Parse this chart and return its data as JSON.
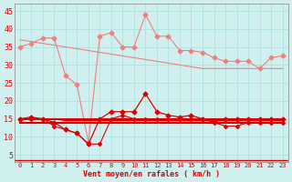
{
  "x": [
    0,
    1,
    2,
    3,
    4,
    5,
    6,
    7,
    8,
    9,
    10,
    11,
    12,
    13,
    14,
    15,
    16,
    17,
    18,
    19,
    20,
    21,
    22,
    23
  ],
  "rafales": [
    35,
    36,
    37.5,
    37.5,
    27,
    24.5,
    8.5,
    38,
    39,
    35,
    35,
    44,
    38,
    38,
    34,
    34,
    33.5,
    32,
    31,
    31,
    31,
    29,
    32,
    32.5
  ],
  "rafales_trend": [
    37,
    36.5,
    36,
    35.5,
    35,
    34.5,
    34,
    33.5,
    33,
    32.5,
    32,
    31.5,
    31,
    30.5,
    30,
    29.5,
    29,
    29,
    29,
    29,
    29,
    29,
    29,
    29
  ],
  "vent_moy": [
    15,
    15.5,
    15,
    14,
    12,
    11,
    8,
    15,
    17,
    17,
    17,
    22,
    17,
    16,
    15.5,
    16,
    15,
    14.5,
    15,
    15,
    15,
    15,
    15,
    15
  ],
  "vent_moy_trend": [
    15,
    15,
    15,
    15,
    14.5,
    14.5,
    14.5,
    14.5,
    14.5,
    14.5,
    14.5,
    14.5,
    14.5,
    14.5,
    14.5,
    14.5,
    14.5,
    14.5,
    14.5,
    14.5,
    14.5,
    14.5,
    14.5,
    14.5
  ],
  "vent_min": [
    15,
    15,
    15,
    13,
    12,
    11,
    8,
    8,
    15,
    16,
    15,
    15,
    15,
    15,
    15,
    15,
    15,
    14,
    13,
    13,
    14,
    14,
    14,
    14
  ],
  "vent_flat1": [
    15,
    15,
    15,
    15,
    15,
    15,
    15,
    15,
    15,
    15,
    15,
    15,
    15,
    15,
    15,
    15,
    15,
    15,
    15,
    15,
    15,
    15,
    15,
    15
  ],
  "vent_flat2": [
    14,
    14,
    14,
    14,
    14,
    14,
    14,
    14,
    14,
    14,
    14,
    14,
    14,
    14,
    14,
    14,
    14,
    14,
    14,
    14,
    14,
    14,
    14,
    14
  ],
  "background_color": "#cff0ee",
  "grid_color": "#aadddd",
  "line_color_light": "#f08080",
  "line_color_dark": "#dd0000",
  "arrow_color": "#dd0000",
  "xlabel": "Vent moyen/en rafales ( km/h )",
  "xlabel_color": "#dd0000",
  "yticks": [
    5,
    10,
    15,
    20,
    25,
    30,
    35,
    40,
    45
  ],
  "ylim": [
    3,
    47
  ],
  "xlim": [
    -0.5,
    23.5
  ]
}
